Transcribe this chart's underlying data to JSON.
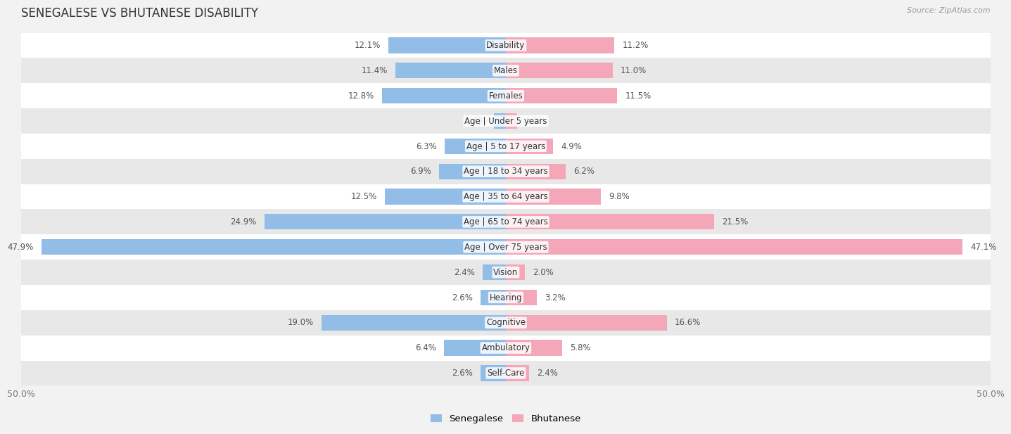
{
  "title": "SENEGALESE VS BHUTANESE DISABILITY",
  "source": "Source: ZipAtlas.com",
  "categories": [
    "Disability",
    "Males",
    "Females",
    "Age | Under 5 years",
    "Age | 5 to 17 years",
    "Age | 18 to 34 years",
    "Age | 35 to 64 years",
    "Age | 65 to 74 years",
    "Age | Over 75 years",
    "Vision",
    "Hearing",
    "Cognitive",
    "Ambulatory",
    "Self-Care"
  ],
  "senegalese": [
    12.1,
    11.4,
    12.8,
    1.2,
    6.3,
    6.9,
    12.5,
    24.9,
    47.9,
    2.4,
    2.6,
    19.0,
    6.4,
    2.6
  ],
  "bhutanese": [
    11.2,
    11.0,
    11.5,
    1.2,
    4.9,
    6.2,
    9.8,
    21.5,
    47.1,
    2.0,
    3.2,
    16.6,
    5.8,
    2.4
  ],
  "senegalese_color": "#92bde7",
  "bhutanese_color": "#f4a7b9",
  "bar_height": 0.62,
  "xlim": 50.0,
  "bg_color": "#f2f2f2",
  "row_colors": [
    "#ffffff",
    "#e8e8e8"
  ],
  "title_fontsize": 12,
  "label_fontsize": 8.5,
  "tick_fontsize": 9,
  "legend_fontsize": 9.5
}
